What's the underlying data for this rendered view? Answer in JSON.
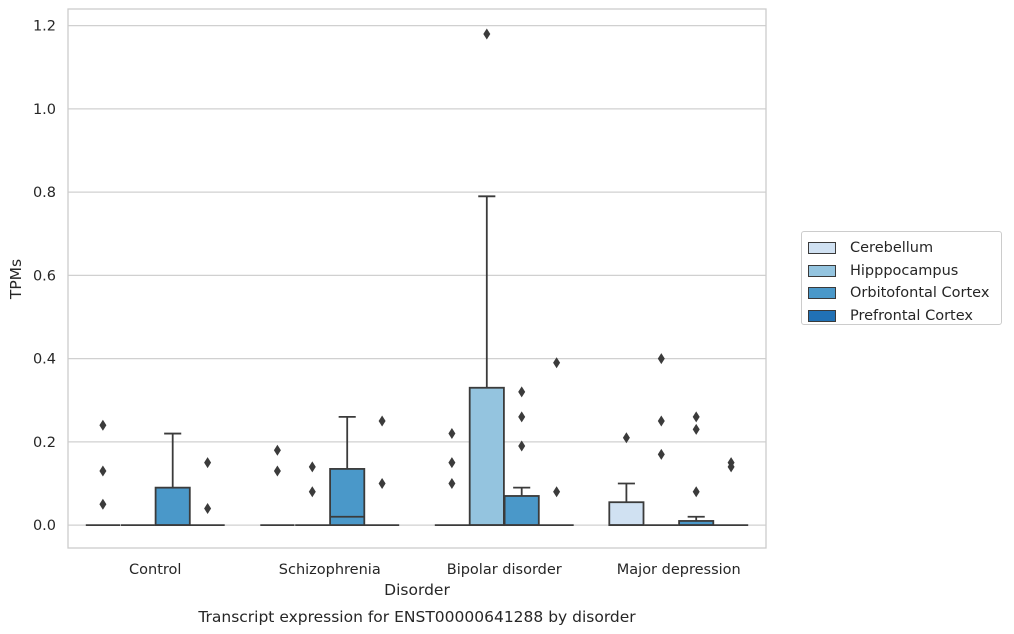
{
  "chart_data": {
    "type": "box",
    "title": "Transcript expression for ENST00000641288 by disorder",
    "xlabel": "Disorder",
    "ylabel": "TPMs",
    "ylim": [
      -0.055,
      1.24
    ],
    "yticks": [
      0.0,
      0.2,
      0.4,
      0.6,
      0.8,
      1.0,
      1.2
    ],
    "ytick_labels": [
      "0.0",
      "0.2",
      "0.4",
      "0.6",
      "0.8",
      "1.0",
      "1.2"
    ],
    "grid": "horizontal",
    "legend_position": "right",
    "categories": [
      "Control",
      "Schizophrenia",
      "Bipolar disorder",
      "Major depression"
    ],
    "series": [
      {
        "name": "Cerebellum",
        "color": "#d0e1f2",
        "boxes": [
          {
            "q1": 0,
            "median": 0,
            "q3": 0,
            "whislo": 0,
            "whishi": 0,
            "fliers": [
              0.24,
              0.13,
              0.05
            ]
          },
          {
            "q1": 0,
            "median": 0,
            "q3": 0,
            "whislo": 0,
            "whishi": 0,
            "fliers": [
              0.18,
              0.13
            ]
          },
          {
            "q1": 0,
            "median": 0,
            "q3": 0,
            "whislo": 0,
            "whishi": 0,
            "fliers": [
              0.22,
              0.15,
              0.1
            ]
          },
          {
            "q1": 0,
            "median": 0,
            "q3": 0.055,
            "whislo": 0,
            "whishi": 0.1,
            "fliers": [
              0.21
            ]
          }
        ]
      },
      {
        "name": "Hipppocampus",
        "color": "#94c4df",
        "boxes": [
          {
            "q1": 0,
            "median": 0,
            "q3": 0,
            "whislo": 0,
            "whishi": 0,
            "fliers": []
          },
          {
            "q1": 0,
            "median": 0,
            "q3": 0,
            "whislo": 0,
            "whishi": 0,
            "fliers": [
              0.14,
              0.08
            ]
          },
          {
            "q1": 0,
            "median": 0,
            "q3": 0.33,
            "whislo": 0,
            "whishi": 0.79,
            "fliers": [
              1.18
            ]
          },
          {
            "q1": 0,
            "median": 0,
            "q3": 0,
            "whislo": 0,
            "whishi": 0,
            "fliers": [
              0.4,
              0.25,
              0.17
            ]
          }
        ]
      },
      {
        "name": "Orbitofontal Cortex",
        "color": "#4a98c9",
        "boxes": [
          {
            "q1": 0,
            "median": 0,
            "q3": 0.09,
            "whislo": 0,
            "whishi": 0.22,
            "fliers": []
          },
          {
            "q1": 0,
            "median": 0.02,
            "q3": 0.135,
            "whislo": 0,
            "whishi": 0.26,
            "fliers": []
          },
          {
            "q1": 0,
            "median": 0,
            "q3": 0.07,
            "whislo": 0,
            "whishi": 0.09,
            "fliers": [
              0.32,
              0.26,
              0.19
            ]
          },
          {
            "q1": 0,
            "median": 0,
            "q3": 0.01,
            "whislo": 0,
            "whishi": 0.02,
            "fliers": [
              0.26,
              0.23,
              0.08
            ]
          }
        ]
      },
      {
        "name": "Prefrontal Cortex",
        "color": "#2171b5",
        "boxes": [
          {
            "q1": 0,
            "median": 0,
            "q3": 0,
            "whislo": 0,
            "whishi": 0,
            "fliers": [
              0.15,
              0.04
            ]
          },
          {
            "q1": 0,
            "median": 0,
            "q3": 0,
            "whislo": 0,
            "whishi": 0,
            "fliers": [
              0.25,
              0.1
            ]
          },
          {
            "q1": 0,
            "median": 0,
            "q3": 0,
            "whislo": 0,
            "whishi": 0,
            "fliers": [
              0.39,
              0.08
            ]
          },
          {
            "q1": 0,
            "median": 0,
            "q3": 0,
            "whislo": 0,
            "whishi": 0,
            "fliers": [
              0.15,
              0.14
            ]
          }
        ]
      }
    ]
  }
}
